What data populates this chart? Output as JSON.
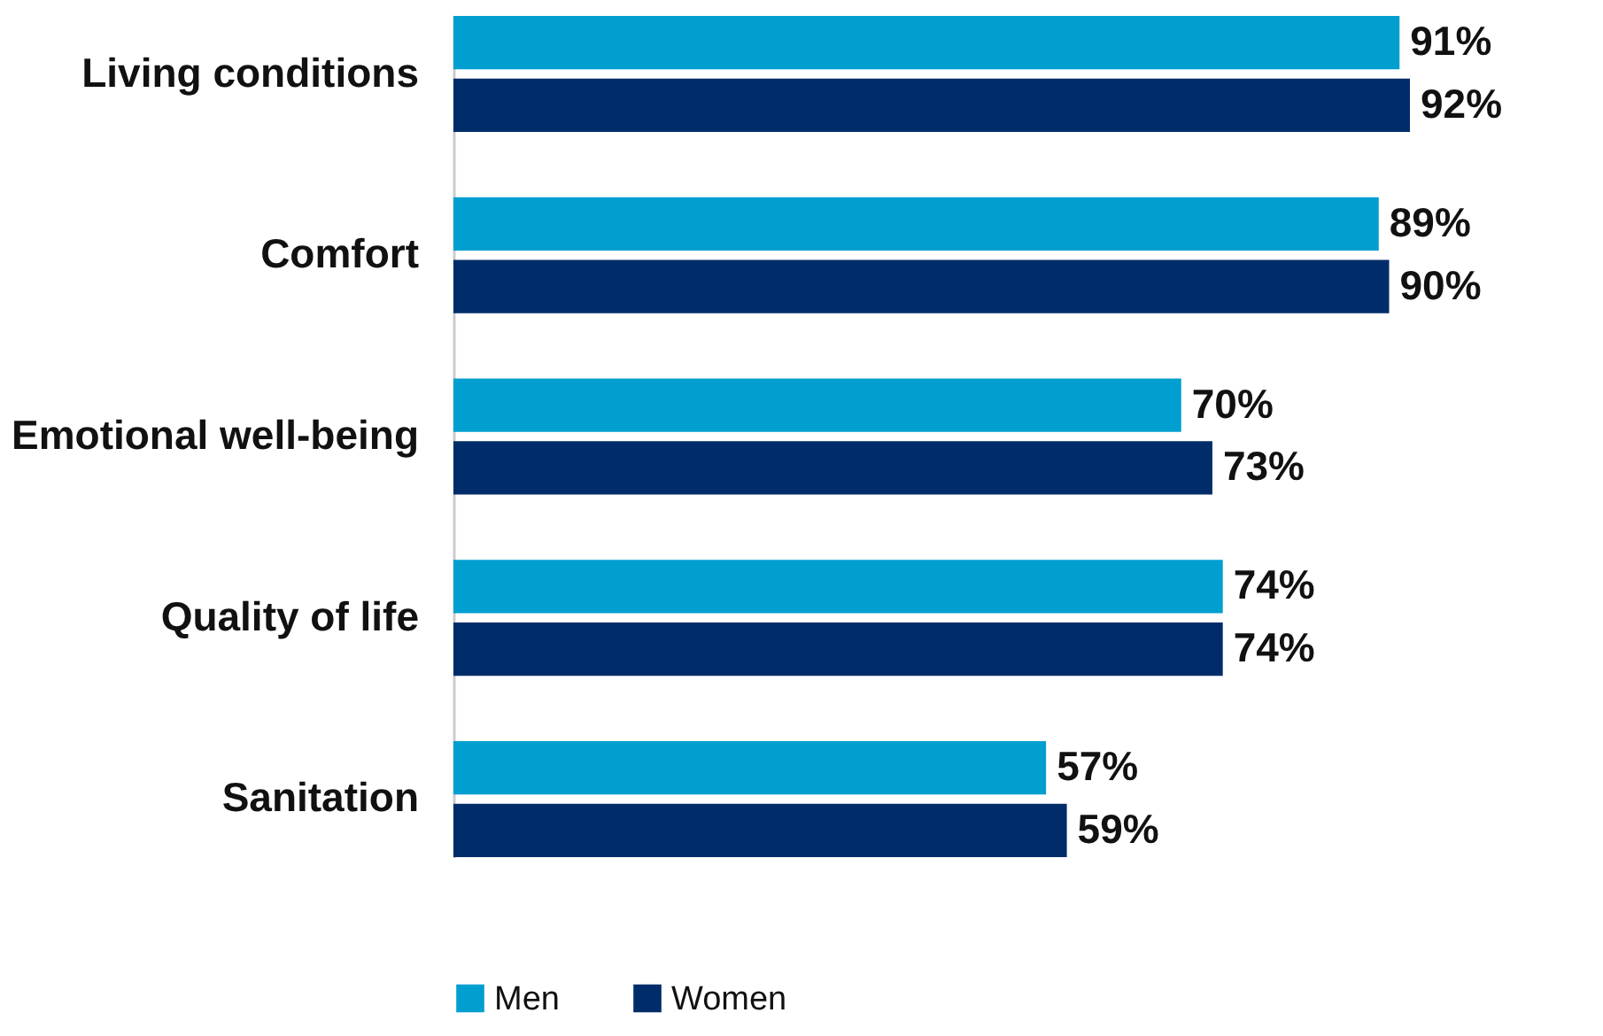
{
  "chart_data": {
    "type": "bar",
    "orientation": "horizontal",
    "categories": [
      "Living conditions",
      "Comfort",
      "Emotional well-being",
      "Quality of life",
      "Sanitation"
    ],
    "series": [
      {
        "name": "Men",
        "color": "#009fd0",
        "values": [
          91,
          89,
          70,
          74,
          57
        ],
        "value_labels": [
          "91%",
          "89%",
          "70%",
          "74%",
          "57%"
        ]
      },
      {
        "name": "Women",
        "color": "#002d6a",
        "values": [
          92,
          90,
          73,
          74,
          59
        ],
        "value_labels": [
          "92%",
          "90%",
          "73%",
          "74%",
          "59%"
        ]
      }
    ],
    "legend": "bottom"
  }
}
